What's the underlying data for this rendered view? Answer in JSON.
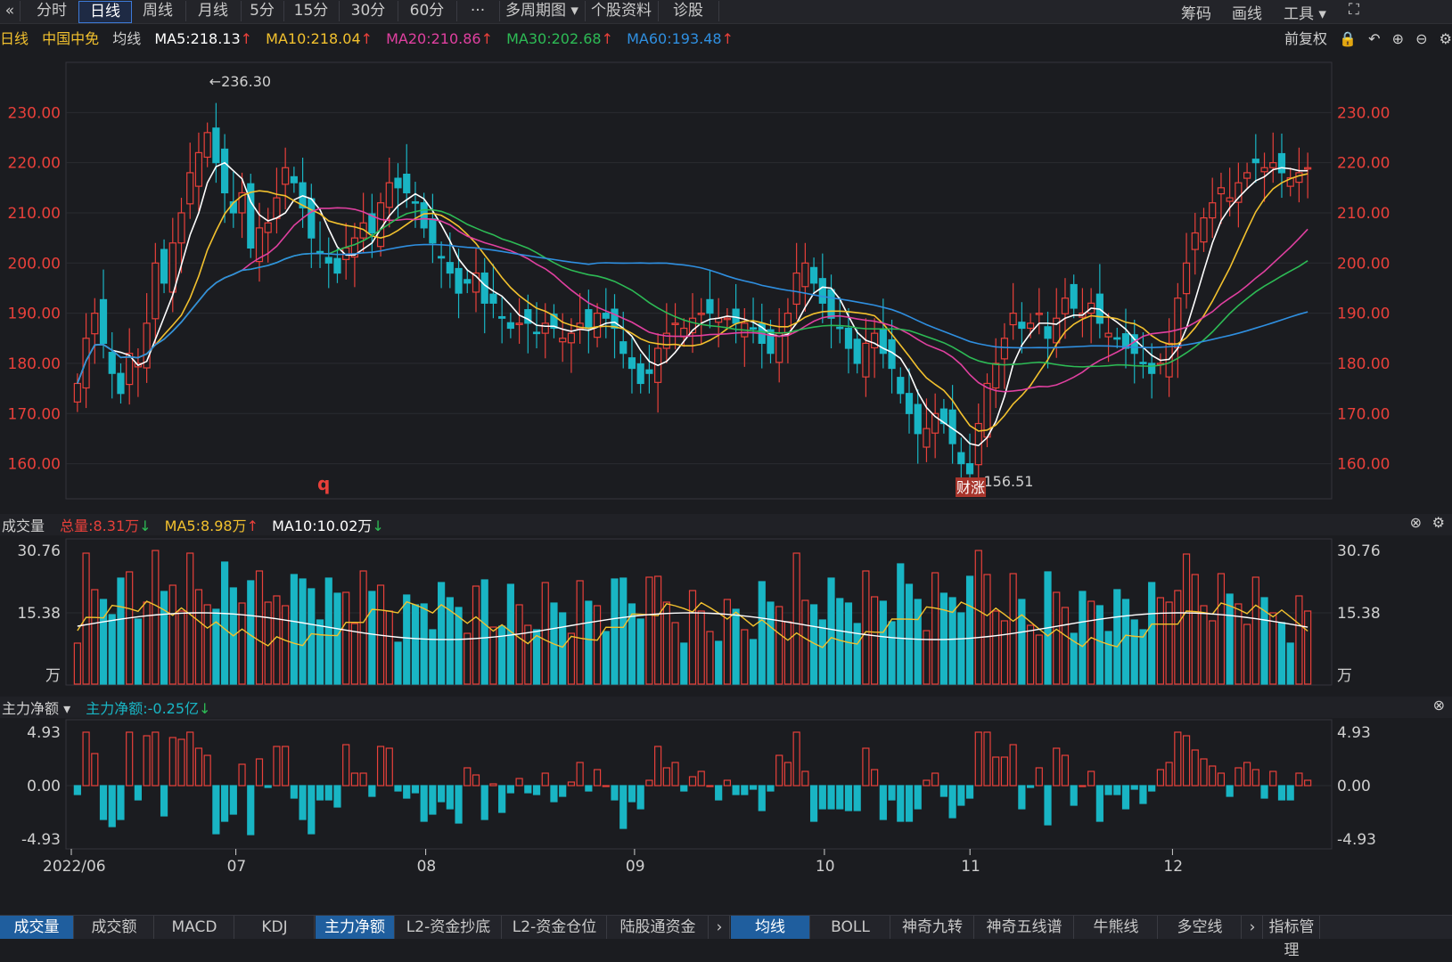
{
  "toolbar": {
    "back_icon": "double-chevron-left",
    "tabs": [
      "分时",
      "日线",
      "周线",
      "月线",
      "5分",
      "15分",
      "30分",
      "60分",
      "···",
      "多周期图 ▾",
      "个股资料",
      "诊股"
    ],
    "active_tab": 1,
    "right_tools": [
      "筹码",
      "画线",
      "工具 ▾"
    ],
    "fullscreen_icon": "expand-icon"
  },
  "info": {
    "period": "日线",
    "name": "中国中免",
    "avg_label": "均线",
    "ma5": "MA5:218.13",
    "ma10": "MA10:218.04",
    "ma20": "MA20:210.86",
    "ma30": "MA30:202.68",
    "ma60": "MA60:193.48",
    "fq": "前复权",
    "colors": {
      "ma5": "#ffffff",
      "ma10": "#f2c12e",
      "ma20": "#e040a0",
      "ma30": "#2dbb55",
      "ma60": "#2f8fe0",
      "up": "#e8403a",
      "down": "#19b5c4"
    }
  },
  "volume": {
    "title": "成交量",
    "total": "总量:8.31万",
    "ma5": "MA5:8.98万",
    "ma10": "MA10:10.02万",
    "ticks": [
      "30.76",
      "15.38",
      "万"
    ]
  },
  "flow": {
    "title": "主力净额 ▾",
    "value": "主力净额:-0.25亿",
    "ticks": [
      "4.93",
      "0.00",
      "-4.93"
    ]
  },
  "chart_data": {
    "type": "candlestick",
    "price_ticks": [
      "230.00",
      "220.00",
      "210.00",
      "200.00",
      "190.00",
      "180.00",
      "170.00",
      "160.00"
    ],
    "ylim": [
      153,
      240
    ],
    "x_labels": [
      "2022/06",
      "07",
      "08",
      "09",
      "10",
      "11",
      "12"
    ],
    "high_marker": "←236.30",
    "low_marker": "←156.51",
    "badge": "财涨",
    "mark": "q",
    "close": [
      176,
      185,
      190,
      184,
      178,
      174,
      182,
      180,
      188,
      200,
      196,
      204,
      210,
      218,
      222,
      226,
      220,
      214,
      210,
      214,
      203,
      207,
      208,
      213,
      219,
      216,
      211,
      205,
      202,
      200,
      198,
      203,
      205,
      208,
      206,
      212,
      216,
      215,
      214,
      212,
      207,
      204,
      201,
      198,
      194,
      196,
      198,
      192,
      192,
      189,
      187,
      188,
      188,
      186,
      188,
      187,
      185,
      186,
      188,
      187,
      190,
      189,
      187,
      182,
      179,
      176,
      178,
      183,
      186,
      188,
      187,
      189,
      190,
      190,
      189,
      189,
      188,
      188,
      187,
      184,
      182,
      186,
      190,
      198,
      200,
      196,
      192,
      189,
      187,
      183,
      180,
      184,
      186,
      182,
      179,
      174,
      170,
      166,
      167,
      170,
      168,
      164,
      160,
      158,
      168,
      176,
      180,
      185,
      190,
      187,
      188,
      190,
      185,
      189,
      193,
      191,
      190,
      192,
      188,
      186,
      185,
      183,
      182,
      180,
      178,
      180,
      184,
      193,
      200,
      206,
      209,
      212,
      215,
      213,
      216,
      218,
      220,
      219,
      220,
      218,
      217,
      218,
      219
    ]
  }
}
